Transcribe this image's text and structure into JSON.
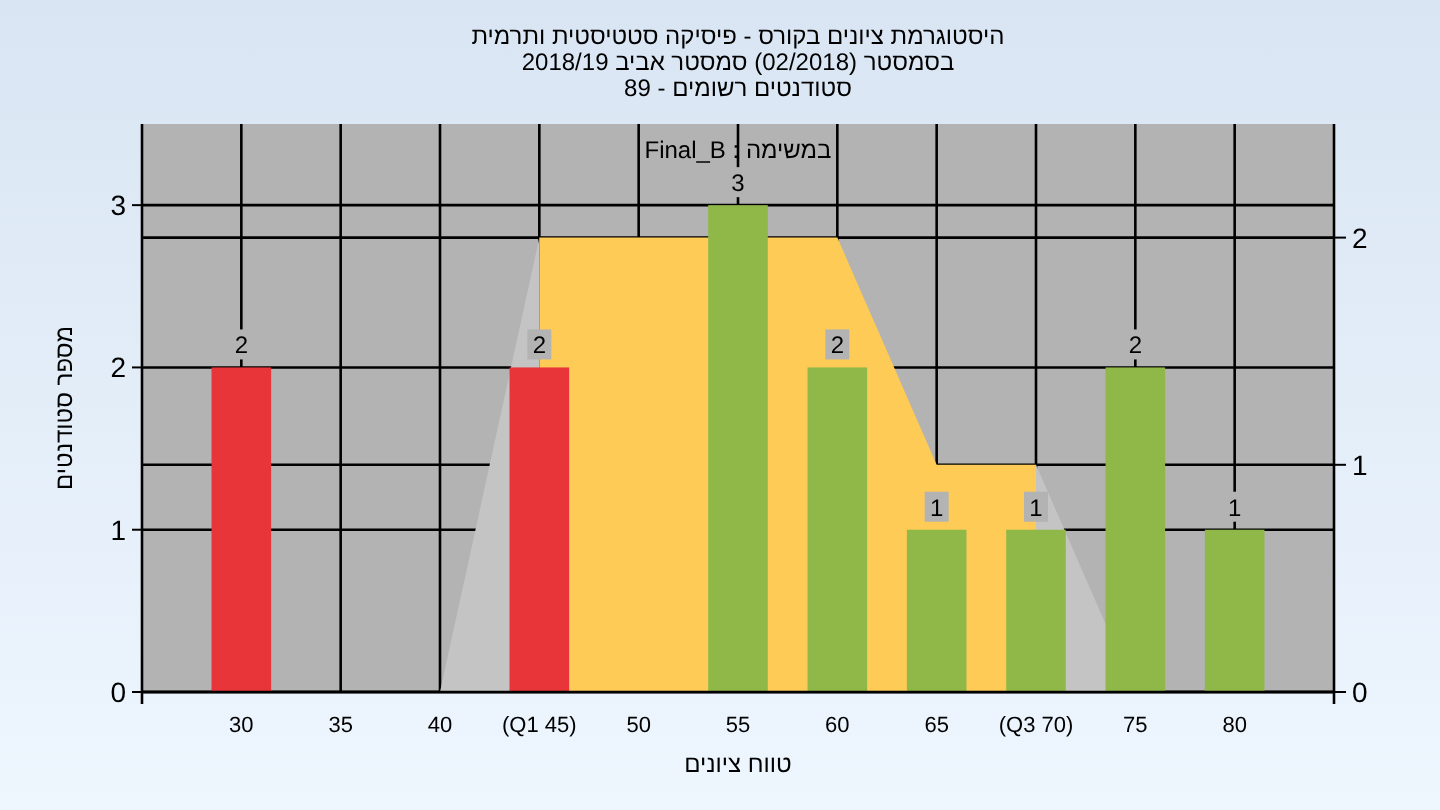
{
  "chart_data": {
    "type": "bar",
    "title": "היסטוגרמת ציונים בקורס - פיסיקה סטטיסטית ותרמית",
    "subtitle": "בסמסטר (02/2018) סמסטר אביב 2018/19",
    "annotations": [
      "סטודנטים רשומים - 89",
      "במשימה : Final_B"
    ],
    "xlabel": "טווח ציונים",
    "ylabel": "מספר סטודנטים",
    "categories": [
      "30",
      "35",
      "40",
      "(Q1 45)",
      "50",
      "55",
      "60",
      "65",
      "(Q3 70)",
      "75",
      "80"
    ],
    "series": [
      {
        "type": "area",
        "axis": "y2",
        "color": "#c4c4c4",
        "x": [
          "40",
          "(Q1 45)",
          "50",
          "(Q3 70)",
          "75"
        ],
        "values": [
          0,
          2,
          null,
          1,
          0
        ]
      },
      {
        "type": "area",
        "axis": "y2",
        "color": "#fecb57",
        "x": [
          "(Q1 45)",
          "50",
          "60",
          "65",
          "(Q3 70)"
        ],
        "values": [
          2,
          2,
          2,
          1,
          1
        ]
      },
      {
        "values": [
          2,
          0,
          0,
          2,
          0,
          3,
          2,
          1,
          1,
          2,
          1
        ],
        "colors": [
          "#e8353a",
          "#8fb848",
          "#8fb848",
          "#e8353a",
          "#8fb848",
          "#8fb848",
          "#8fb848",
          "#8fb848",
          "#8fb848",
          "#8fb848",
          "#8fb848"
        ],
        "value_labels": [
          "2",
          null,
          null,
          "2",
          null,
          "3",
          "2",
          "1",
          "1",
          "2",
          "1"
        ]
      }
    ],
    "ylim": [
      0,
      3.5
    ],
    "yticks": [
      0,
      1,
      2,
      3
    ],
    "y2lim": [
      0,
      2.5
    ],
    "y2ticks": [
      0,
      1,
      2
    ],
    "grid": true
  }
}
